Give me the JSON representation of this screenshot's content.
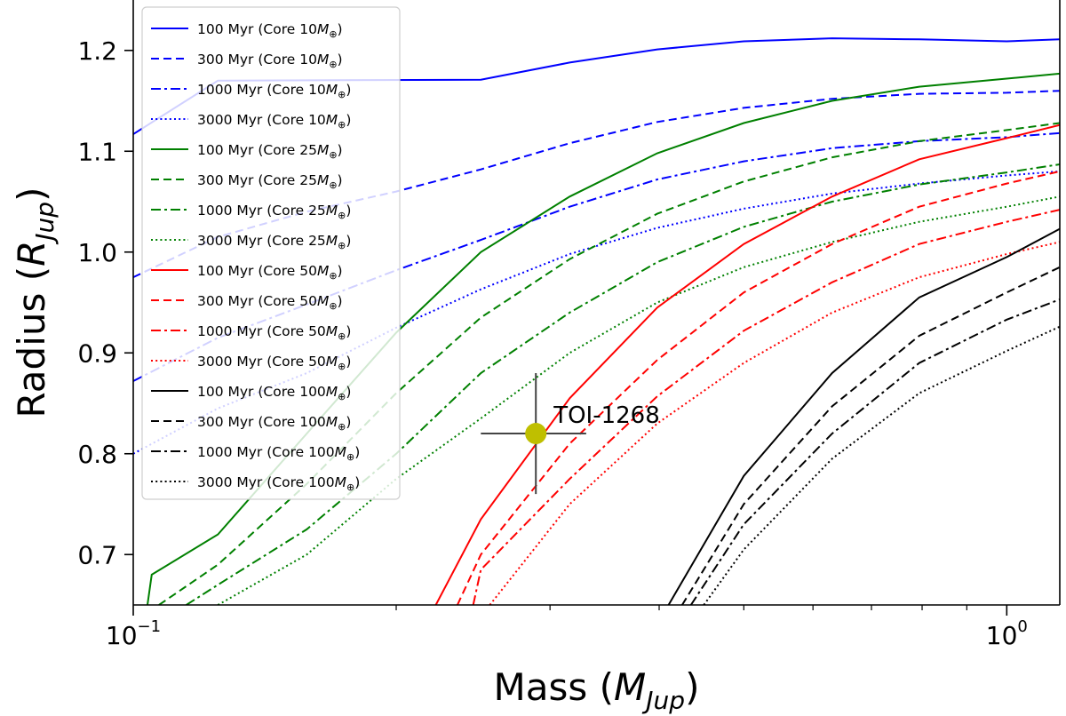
{
  "chart_data": {
    "type": "line",
    "xscale": "log",
    "xlim": [
      0.1,
      1.15
    ],
    "ylim": [
      0.65,
      1.25
    ],
    "xlabel": "Mass",
    "xlabel_sub": "Jup",
    "ylabel": "Radius",
    "ylabel_sub": "Jup",
    "x_ticks": [
      {
        "value": 0.1,
        "base": "10",
        "exp": "−1"
      },
      {
        "value": 1.0,
        "base": "10",
        "exp": "0"
      }
    ],
    "y_ticks": [
      "0.7",
      "0.8",
      "0.9",
      "1.0",
      "1.1",
      "1.2"
    ],
    "legend_position": "upper-left",
    "colors": {
      "10": "#0000ff",
      "25": "#008000",
      "50": "#ff0000",
      "100": "#000000"
    },
    "series": [
      {
        "name": "100 Myr (Core 10M⊕)",
        "label": "100 Myr (Core 10",
        "core": "10",
        "style": "solid",
        "x": [
          0.1,
          0.125,
          0.25,
          0.316,
          0.398,
          0.5,
          0.631,
          0.794,
          1.0,
          1.15
        ],
        "y": [
          1.117,
          1.17,
          1.171,
          1.188,
          1.201,
          1.209,
          1.212,
          1.211,
          1.209,
          1.211
        ]
      },
      {
        "name": "300 Myr (Core 10M⊕)",
        "label": "300 Myr (Core 10",
        "core": "10",
        "style": "dashed",
        "x": [
          0.1,
          0.125,
          0.158,
          0.2,
          0.25,
          0.316,
          0.398,
          0.5,
          0.631,
          0.794,
          1.0,
          1.15
        ],
        "y": [
          0.975,
          1.015,
          1.04,
          1.06,
          1.082,
          1.108,
          1.129,
          1.143,
          1.152,
          1.157,
          1.158,
          1.16
        ]
      },
      {
        "name": "1000 Myr (Core 10M⊕)",
        "label": "1000 Myr (Core 10",
        "core": "10",
        "style": "dashdot",
        "x": [
          0.1,
          0.125,
          0.158,
          0.2,
          0.25,
          0.316,
          0.398,
          0.5,
          0.631,
          0.794,
          1.0,
          1.15
        ],
        "y": [
          0.872,
          0.915,
          0.948,
          0.982,
          1.012,
          1.045,
          1.072,
          1.09,
          1.103,
          1.11,
          1.114,
          1.118
        ]
      },
      {
        "name": "3000 Myr (Core 10M⊕)",
        "label": "3000 Myr (Core 10",
        "core": "10",
        "style": "dotted",
        "x": [
          0.1,
          0.125,
          0.158,
          0.2,
          0.25,
          0.316,
          0.398,
          0.5,
          0.631,
          0.794,
          1.0,
          1.15
        ],
        "y": [
          0.8,
          0.845,
          0.88,
          0.925,
          0.963,
          0.998,
          1.024,
          1.043,
          1.058,
          1.068,
          1.076,
          1.08
        ]
      },
      {
        "name": "100 Myr (Core 25M⊕)",
        "label": "100 Myr (Core 25",
        "core": "25",
        "style": "solid",
        "x": [
          0.1,
          0.105,
          0.125,
          0.158,
          0.2,
          0.25,
          0.316,
          0.398,
          0.5,
          0.631,
          0.794,
          1.0,
          1.15
        ],
        "y": [
          0.55,
          0.68,
          0.72,
          0.82,
          0.92,
          1.0,
          1.055,
          1.098,
          1.128,
          1.15,
          1.164,
          1.172,
          1.177
        ]
      },
      {
        "name": "300 Myr (Core 25M⊕)",
        "label": "300 Myr (Core 25",
        "core": "25",
        "style": "dashed",
        "x": [
          0.107,
          0.125,
          0.158,
          0.2,
          0.25,
          0.316,
          0.398,
          0.5,
          0.631,
          0.794,
          1.0,
          1.15
        ],
        "y": [
          0.65,
          0.69,
          0.77,
          0.86,
          0.935,
          0.993,
          1.038,
          1.07,
          1.094,
          1.11,
          1.121,
          1.128
        ]
      },
      {
        "name": "1000 Myr (Core 25M⊕)",
        "label": "1000 Myr (Core 25",
        "core": "25",
        "style": "dashdot",
        "x": [
          0.115,
          0.125,
          0.158,
          0.2,
          0.25,
          0.316,
          0.398,
          0.5,
          0.631,
          0.794,
          1.0,
          1.15
        ],
        "y": [
          0.65,
          0.67,
          0.725,
          0.8,
          0.88,
          0.94,
          0.99,
          1.025,
          1.05,
          1.067,
          1.079,
          1.087
        ]
      },
      {
        "name": "3000 Myr (Core 25M⊕)",
        "label": "3000 Myr (Core 25",
        "core": "25",
        "style": "dotted",
        "x": [
          0.125,
          0.158,
          0.2,
          0.25,
          0.316,
          0.398,
          0.5,
          0.631,
          0.794,
          1.0,
          1.15
        ],
        "y": [
          0.65,
          0.7,
          0.775,
          0.835,
          0.9,
          0.95,
          0.985,
          1.01,
          1.03,
          1.045,
          1.055
        ]
      },
      {
        "name": "100 Myr (Core 50M⊕)",
        "label": "100 Myr (Core 50",
        "core": "50",
        "style": "solid",
        "x": [
          0.222,
          0.25,
          0.316,
          0.398,
          0.5,
          0.631,
          0.794,
          1.0,
          1.15
        ],
        "y": [
          0.65,
          0.735,
          0.855,
          0.945,
          1.008,
          1.055,
          1.092,
          1.113,
          1.126
        ]
      },
      {
        "name": "300 Myr (Core 50M⊕)",
        "label": "300 Myr (Core 50",
        "core": "50",
        "style": "dashed",
        "x": [
          0.235,
          0.25,
          0.316,
          0.398,
          0.5,
          0.631,
          0.794,
          1.0,
          1.15
        ],
        "y": [
          0.65,
          0.7,
          0.81,
          0.893,
          0.96,
          1.008,
          1.045,
          1.068,
          1.08
        ]
      },
      {
        "name": "1000 Myr (Core 50M⊕)",
        "label": "1000 Myr (Core 50",
        "core": "50",
        "style": "dashdot",
        "x": [
          0.245,
          0.25,
          0.316,
          0.398,
          0.5,
          0.631,
          0.794,
          1.0,
          1.15
        ],
        "y": [
          0.65,
          0.685,
          0.775,
          0.857,
          0.922,
          0.97,
          1.008,
          1.03,
          1.042
        ]
      },
      {
        "name": "3000 Myr (Core 50M⊕)",
        "label": "3000 Myr (Core 50",
        "core": "50",
        "style": "dotted",
        "x": [
          0.256,
          0.316,
          0.398,
          0.5,
          0.631,
          0.794,
          1.0,
          1.15
        ],
        "y": [
          0.65,
          0.75,
          0.83,
          0.89,
          0.94,
          0.975,
          0.998,
          1.01
        ]
      },
      {
        "name": "100 Myr (Core 100M⊕)",
        "label": "100 Myr (Core 100",
        "core": "100",
        "style": "solid",
        "x": [
          0.41,
          0.5,
          0.631,
          0.794,
          1.0,
          1.15
        ],
        "y": [
          0.65,
          0.778,
          0.88,
          0.955,
          0.995,
          1.023
        ]
      },
      {
        "name": "300 Myr (Core 100M⊕)",
        "label": "300 Myr (Core 100",
        "core": "100",
        "style": "dashed",
        "x": [
          0.425,
          0.5,
          0.631,
          0.794,
          1.0,
          1.15
        ],
        "y": [
          0.65,
          0.75,
          0.847,
          0.917,
          0.96,
          0.985
        ]
      },
      {
        "name": "1000 Myr (Core 100M⊕)",
        "label": "1000 Myr (Core 100",
        "core": "100",
        "style": "dashdot",
        "x": [
          0.435,
          0.5,
          0.631,
          0.794,
          1.0,
          1.15
        ],
        "y": [
          0.65,
          0.73,
          0.82,
          0.89,
          0.933,
          0.953
        ]
      },
      {
        "name": "3000 Myr (Core 100M⊕)",
        "label": "3000 Myr (Core 100",
        "core": "100",
        "style": "dotted",
        "x": [
          0.45,
          0.5,
          0.631,
          0.794,
          1.0,
          1.15
        ],
        "y": [
          0.65,
          0.705,
          0.795,
          0.86,
          0.902,
          0.926
        ]
      }
    ],
    "legend_suffix_base": "M",
    "legend_suffix_sub": "⊕",
    "legend_suffix_close": ")",
    "point": {
      "label": "TOI-1268",
      "x": 0.289,
      "y": 0.82,
      "x_err": [
        0.25,
        0.33
      ],
      "y_err": [
        0.76,
        0.88
      ],
      "color": "#bfbf00"
    }
  }
}
